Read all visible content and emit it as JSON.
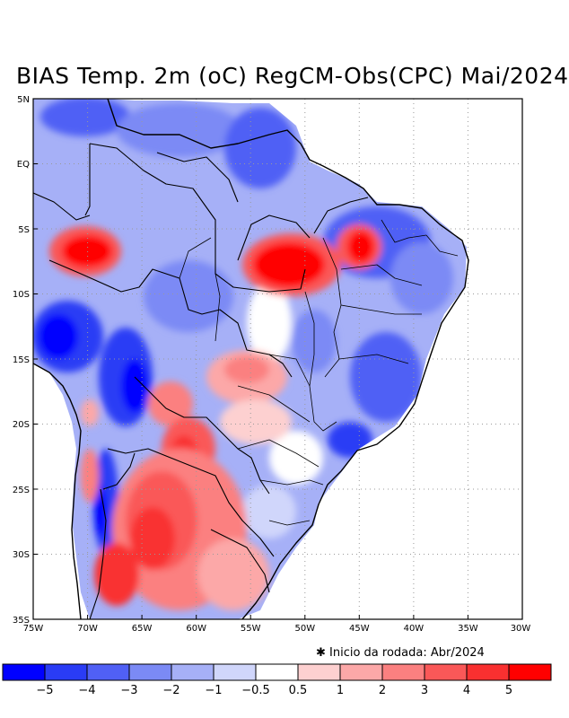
{
  "title": "BIAS Temp. 2m (oC) RegCM-Obs(CPC) Mai/2024",
  "note": "✱ Inicio da rodada: Abr/2024",
  "lat_labels": [
    "5N",
    "EQ",
    "5S",
    "10S",
    "15S",
    "20S",
    "25S",
    "30S",
    "35S"
  ],
  "lon_labels": [
    "75W",
    "70W",
    "65W",
    "60W",
    "55W",
    "50W",
    "45W",
    "40W",
    "35W",
    "30W"
  ],
  "colorbar": {
    "colors": [
      "#0000ff",
      "#2a3cf5",
      "#5060f5",
      "#7b8af5",
      "#a6b0f7",
      "#d0d6fb",
      "#ffffff",
      "#fdd0d0",
      "#fca8a8",
      "#fb8080",
      "#fa5858",
      "#f93030",
      "#ff0000"
    ],
    "labels": [
      "−5",
      "−4",
      "−3",
      "−2",
      "−1",
      "−0.5",
      "0.5",
      "1",
      "2",
      "3",
      "4",
      "5"
    ]
  }
}
